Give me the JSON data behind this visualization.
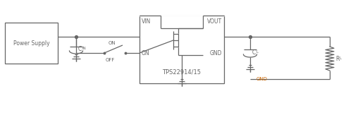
{
  "bg_color": "#ffffff",
  "line_color": "#666666",
  "text_color": "#666666",
  "orange_color": "#cc6600",
  "fig_width": 5.01,
  "fig_height": 1.6,
  "dpi": 100,
  "power_supply_label": "Power Supply",
  "ic_label": "TPS22914/15",
  "vin_label": "VIN",
  "vout_label": "VOUT",
  "gnd_label": "GND",
  "cin_label": "C",
  "cin_sub": "IN",
  "cl_label": "C",
  "cl_sub": "L",
  "rl_label": "R",
  "rl_sub": "L",
  "on_label": "ON",
  "off_label": "OFF",
  "on_pin_label": "ON",
  "gnd_orange": "GND"
}
